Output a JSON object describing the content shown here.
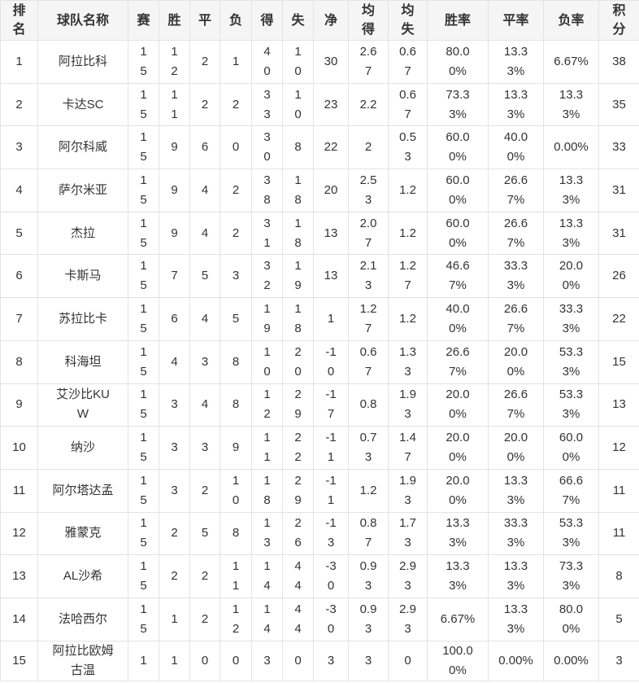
{
  "table": {
    "headers": [
      "排名",
      "球队名称",
      "赛",
      "胜",
      "平",
      "负",
      "得",
      "失",
      "净",
      "均得",
      "均失",
      "胜率",
      "平率",
      "负率",
      "积分"
    ],
    "rows": [
      [
        "1",
        "阿拉比科",
        "15",
        "12",
        "2",
        "1",
        "40",
        "10",
        "30",
        "2.67",
        "0.67",
        "80.00%",
        "13.33%",
        "6.67%",
        "38"
      ],
      [
        "2",
        "卡达SC",
        "15",
        "11",
        "2",
        "2",
        "33",
        "10",
        "23",
        "2.2",
        "0.67",
        "73.33%",
        "13.33%",
        "13.33%",
        "35"
      ],
      [
        "3",
        "阿尔科威",
        "15",
        "9",
        "6",
        "0",
        "30",
        "8",
        "22",
        "2",
        "0.53",
        "60.00%",
        "40.00%",
        "0.00%",
        "33"
      ],
      [
        "4",
        "萨尔米亚",
        "15",
        "9",
        "4",
        "2",
        "38",
        "18",
        "20",
        "2.53",
        "1.2",
        "60.00%",
        "26.67%",
        "13.33%",
        "31"
      ],
      [
        "5",
        "杰拉",
        "15",
        "9",
        "4",
        "2",
        "31",
        "18",
        "13",
        "2.07",
        "1.2",
        "60.00%",
        "26.67%",
        "13.33%",
        "31"
      ],
      [
        "6",
        "卡斯马",
        "15",
        "7",
        "5",
        "3",
        "32",
        "19",
        "13",
        "2.13",
        "1.27",
        "46.67%",
        "33.33%",
        "20.00%",
        "26"
      ],
      [
        "7",
        "苏拉比卡",
        "15",
        "6",
        "4",
        "5",
        "19",
        "18",
        "1",
        "1.27",
        "1.2",
        "40.00%",
        "26.67%",
        "33.33%",
        "22"
      ],
      [
        "8",
        "科海坦",
        "15",
        "4",
        "3",
        "8",
        "10",
        "20",
        "-10",
        "0.67",
        "1.33",
        "26.67%",
        "20.00%",
        "53.33%",
        "15"
      ],
      [
        "9",
        "艾沙比KUW",
        "15",
        "3",
        "4",
        "8",
        "12",
        "29",
        "-17",
        "0.8",
        "1.93",
        "20.00%",
        "26.67%",
        "53.33%",
        "13"
      ],
      [
        "10",
        "纳沙",
        "15",
        "3",
        "3",
        "9",
        "11",
        "22",
        "-11",
        "0.73",
        "1.47",
        "20.00%",
        "20.00%",
        "60.00%",
        "12"
      ],
      [
        "11",
        "阿尔塔达孟",
        "15",
        "3",
        "2",
        "10",
        "18",
        "29",
        "-11",
        "1.2",
        "1.93",
        "20.00%",
        "13.33%",
        "66.67%",
        "11"
      ],
      [
        "12",
        "雅蒙克",
        "15",
        "2",
        "5",
        "8",
        "13",
        "26",
        "-13",
        "0.87",
        "1.73",
        "13.33%",
        "33.33%",
        "53.33%",
        "11"
      ],
      [
        "13",
        "AL沙希",
        "15",
        "2",
        "2",
        "11",
        "14",
        "44",
        "-30",
        "0.93",
        "2.93",
        "13.33%",
        "13.33%",
        "73.33%",
        "8"
      ],
      [
        "14",
        "法哈西尔",
        "15",
        "1",
        "2",
        "12",
        "14",
        "44",
        "-30",
        "0.93",
        "2.93",
        "6.67%",
        "13.33%",
        "80.00%",
        "5"
      ],
      [
        "15",
        "阿拉比欧姆古温",
        "1",
        "1",
        "0",
        "0",
        "3",
        "0",
        "3",
        "3",
        "0",
        "100.00%",
        "0.00%",
        "0.00%",
        "3"
      ]
    ]
  }
}
